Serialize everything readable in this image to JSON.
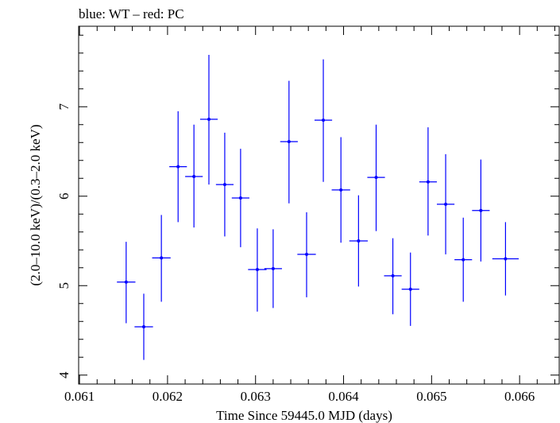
{
  "chart_data": {
    "type": "scatter",
    "title": "blue: WT – red: PC",
    "xlabel": "Time Since 59445.0 MJD (days)",
    "ylabel": "(2.0–10.0 keV)/(0.3–2.0 keV)",
    "xlim": [
      0.06099,
      0.06645
    ],
    "ylim": [
      3.9,
      7.9
    ],
    "x_ticks": [
      0.061,
      0.062,
      0.063,
      0.064,
      0.065,
      0.066
    ],
    "x_tick_labels": [
      "0.061",
      "0.062",
      "0.063",
      "0.064",
      "0.065",
      "0.066"
    ],
    "y_ticks": [
      4,
      5,
      6,
      7
    ],
    "y_tick_labels": [
      "4",
      "5",
      "6",
      "7"
    ],
    "grid": false,
    "series": [
      {
        "color": "#0000ff",
        "points": [
          {
            "x": 0.06153,
            "y": 5.04,
            "xerr": 0.000105,
            "ylo": 4.58,
            "yhi": 5.49
          },
          {
            "x": 0.06173,
            "y": 4.54,
            "xerr": 0.000105,
            "ylo": 4.17,
            "yhi": 4.91
          },
          {
            "x": 0.06193,
            "y": 5.31,
            "xerr": 0.000105,
            "ylo": 4.82,
            "yhi": 5.79
          },
          {
            "x": 0.06212,
            "y": 6.33,
            "xerr": 0.0001,
            "ylo": 5.71,
            "yhi": 6.95
          },
          {
            "x": 0.0623,
            "y": 6.22,
            "xerr": 0.0001,
            "ylo": 5.65,
            "yhi": 6.8
          },
          {
            "x": 0.06247,
            "y": 6.86,
            "xerr": 0.0001,
            "ylo": 6.13,
            "yhi": 7.58
          },
          {
            "x": 0.06265,
            "y": 6.13,
            "xerr": 0.0001,
            "ylo": 5.55,
            "yhi": 6.71
          },
          {
            "x": 0.06283,
            "y": 5.98,
            "xerr": 0.0001,
            "ylo": 5.43,
            "yhi": 6.53
          },
          {
            "x": 0.06302,
            "y": 5.18,
            "xerr": 0.000105,
            "ylo": 4.71,
            "yhi": 5.64
          },
          {
            "x": 0.0632,
            "y": 5.19,
            "xerr": 0.0001,
            "ylo": 4.75,
            "yhi": 5.63
          },
          {
            "x": 0.06338,
            "y": 6.61,
            "xerr": 0.0001,
            "ylo": 5.92,
            "yhi": 7.29
          },
          {
            "x": 0.06358,
            "y": 5.35,
            "xerr": 0.000105,
            "ylo": 4.87,
            "yhi": 5.82
          },
          {
            "x": 0.06377,
            "y": 6.85,
            "xerr": 0.0001,
            "ylo": 6.16,
            "yhi": 7.53
          },
          {
            "x": 0.06397,
            "y": 6.07,
            "xerr": 0.000105,
            "ylo": 5.48,
            "yhi": 6.66
          },
          {
            "x": 0.06417,
            "y": 5.5,
            "xerr": 0.000105,
            "ylo": 4.99,
            "yhi": 6.01
          },
          {
            "x": 0.06437,
            "y": 6.21,
            "xerr": 0.0001,
            "ylo": 5.61,
            "yhi": 6.8
          },
          {
            "x": 0.06456,
            "y": 5.11,
            "xerr": 0.0001,
            "ylo": 4.68,
            "yhi": 5.53
          },
          {
            "x": 0.06476,
            "y": 4.96,
            "xerr": 0.0001,
            "ylo": 4.55,
            "yhi": 5.37
          },
          {
            "x": 0.06496,
            "y": 6.16,
            "xerr": 0.0001,
            "ylo": 5.56,
            "yhi": 6.77
          },
          {
            "x": 0.06516,
            "y": 5.91,
            "xerr": 0.0001,
            "ylo": 5.35,
            "yhi": 6.47
          },
          {
            "x": 0.06536,
            "y": 5.29,
            "xerr": 0.0001,
            "ylo": 4.82,
            "yhi": 5.76
          },
          {
            "x": 0.06556,
            "y": 5.84,
            "xerr": 0.0001,
            "ylo": 5.27,
            "yhi": 6.41
          },
          {
            "x": 0.06584,
            "y": 5.3,
            "xerr": 0.00015,
            "ylo": 4.89,
            "yhi": 5.71
          }
        ]
      }
    ]
  }
}
